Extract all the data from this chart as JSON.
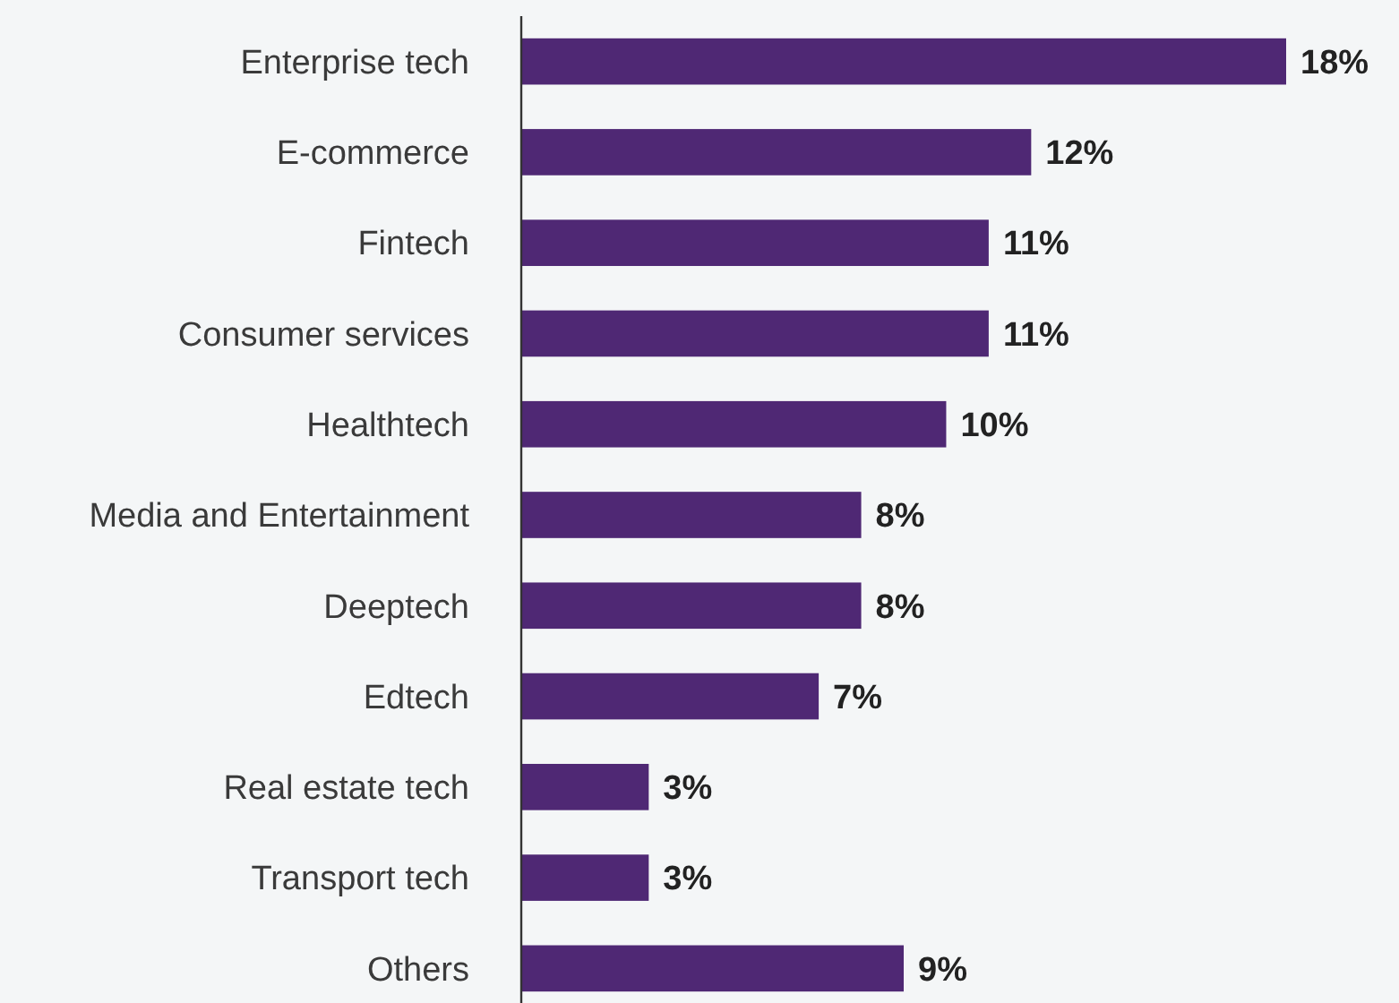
{
  "chart_data": {
    "type": "bar",
    "orientation": "horizontal",
    "categories": [
      "Enterprise tech",
      "E-commerce",
      "Fintech",
      "Consumer services",
      "Healthtech",
      "Media and Entertainment",
      "Deeptech",
      "Edtech",
      "Real estate tech",
      "Transport tech",
      "Others"
    ],
    "values": [
      18,
      12,
      11,
      11,
      10,
      8,
      8,
      7,
      3,
      3,
      9
    ],
    "value_labels": [
      "18%",
      "12%",
      "11%",
      "11%",
      "10%",
      "8%",
      "8%",
      "7%",
      "3%",
      "3%",
      "9%"
    ],
    "color": "#4f2874"
  }
}
